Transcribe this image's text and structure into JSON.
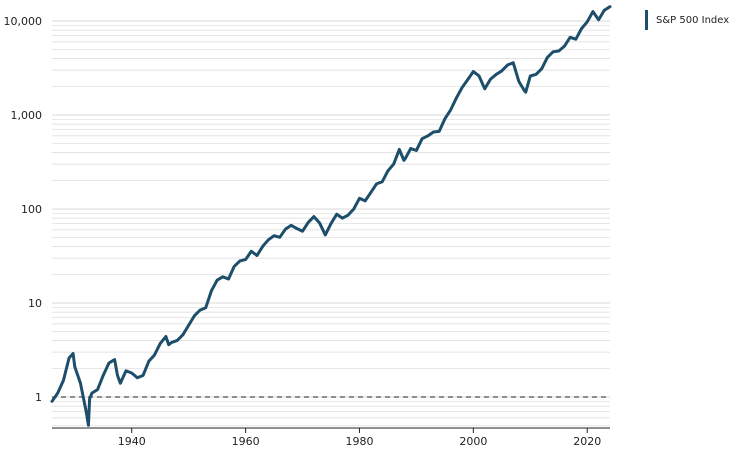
{
  "chart_data": {
    "type": "line",
    "title": "",
    "xlabel": "",
    "ylabel": "",
    "y_scale": "log",
    "xlim": [
      1926,
      2024
    ],
    "ylim": [
      0.5,
      15000
    ],
    "reference_line": {
      "y": 1,
      "style": "dashed"
    },
    "grid": {
      "horizontal": true,
      "minor": true
    },
    "legend_position": "top-right",
    "x_ticks": [
      1940,
      1960,
      1980,
      2000,
      2020
    ],
    "x_tick_labels": [
      "1940",
      "1960",
      "1980",
      "2000",
      "2020"
    ],
    "y_ticks": [
      1,
      10,
      100,
      1000,
      10000
    ],
    "y_tick_labels": [
      "1",
      "10",
      "100",
      "1,000",
      "10,000"
    ],
    "colors": {
      "series": "#1d4e6b",
      "grid": "#d9d9d9",
      "reference": "#222222"
    },
    "series": [
      {
        "name": "S&P 500 Index",
        "x": [
          1926,
          1927,
          1928,
          1929,
          1929.7,
          1930,
          1931,
          1932,
          1932.4,
          1932.6,
          1933,
          1934,
          1935,
          1936,
          1937,
          1937.5,
          1938,
          1939,
          1940,
          1941,
          1942,
          1943,
          1944,
          1945,
          1946,
          1946.5,
          1947,
          1948,
          1949,
          1950,
          1951,
          1952,
          1953,
          1954,
          1955,
          1956,
          1957,
          1958,
          1959,
          1960,
          1961,
          1962,
          1963,
          1964,
          1965,
          1966,
          1967,
          1968,
          1969,
          1970,
          1971,
          1972,
          1973,
          1974,
          1975,
          1976,
          1977,
          1978,
          1979,
          1980,
          1981,
          1982,
          1983,
          1984,
          1985,
          1986,
          1987,
          1987.8,
          1988,
          1989,
          1990,
          1991,
          1992,
          1993,
          1994,
          1995,
          1996,
          1997,
          1998,
          1999,
          2000,
          2001,
          2002,
          2003,
          2004,
          2005,
          2006,
          2007,
          2008,
          2009,
          2009.2,
          2010,
          2011,
          2012,
          2013,
          2014,
          2015,
          2016,
          2017,
          2018,
          2019,
          2020,
          2021,
          2022,
          2023,
          2024
        ],
        "y": [
          0.9,
          1.1,
          1.5,
          2.6,
          2.9,
          2.1,
          1.4,
          0.7,
          0.5,
          0.95,
          1.1,
          1.2,
          1.7,
          2.3,
          2.5,
          1.7,
          1.4,
          1.9,
          1.8,
          1.6,
          1.7,
          2.4,
          2.8,
          3.7,
          4.4,
          3.6,
          3.8,
          4.0,
          4.6,
          5.8,
          7.3,
          8.4,
          8.9,
          13.5,
          17.5,
          19.0,
          18.0,
          24.5,
          28.0,
          29.0,
          35.5,
          32.0,
          40.0,
          47.0,
          52.0,
          50.0,
          61.0,
          67.0,
          62.0,
          58.0,
          72.0,
          83.0,
          71.0,
          53.0,
          70.0,
          88.0,
          80.0,
          86.0,
          100.0,
          130.0,
          122.0,
          150.0,
          185.0,
          195.0,
          255.0,
          300.0,
          430.0,
          330.0,
          340.0,
          440.0,
          420.0,
          560.0,
          600.0,
          660.0,
          670.0,
          910.0,
          1130.0,
          1510.0,
          1950.0,
          2370.0,
          2900.0,
          2600.0,
          1900.0,
          2400.0,
          2700.0,
          2950.0,
          3400.0,
          3600.0,
          2270.0,
          1800.0,
          1750.0,
          2600.0,
          2700.0,
          3100.0,
          4100.0,
          4700.0,
          4800.0,
          5400.0,
          6700.0,
          6400.0,
          8300.0,
          9800.0,
          12600.0,
          10300.0,
          13000.0,
          14200.0
        ]
      }
    ]
  }
}
